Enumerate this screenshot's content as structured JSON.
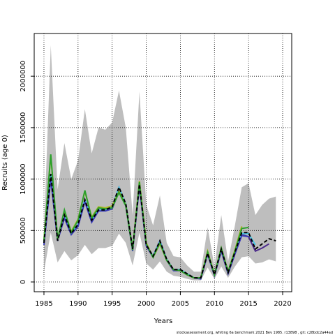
{
  "chart_data": {
    "type": "line",
    "xlabel": "Years",
    "ylabel": "Recruits (age 0)",
    "footer": "stockassessment.org, whiting 6a benchmark 2021 Bev 1985. r13898 , git: c28bdc2a44ad",
    "x": [
      1985,
      1986,
      1987,
      1988,
      1989,
      1990,
      1991,
      1992,
      1993,
      1994,
      1995,
      1996,
      1997,
      1998,
      1999,
      2000,
      2001,
      2002,
      2003,
      2004,
      2005,
      2006,
      2007,
      2008,
      2009,
      2010,
      2011,
      2012,
      2013,
      2014,
      2015,
      2016,
      2017,
      2018,
      2019
    ],
    "band": {
      "color": "#bebebe",
      "upper": [
        500000,
        2300000,
        900000,
        1350000,
        1000000,
        1180000,
        1680000,
        1250000,
        1500000,
        1480000,
        1550000,
        1860000,
        1500000,
        650000,
        1850000,
        750000,
        550000,
        840000,
        380000,
        250000,
        240000,
        160000,
        100000,
        100000,
        530000,
        150000,
        650000,
        200000,
        550000,
        920000,
        960000,
        650000,
        750000,
        810000,
        830000
      ],
      "lower": [
        100000,
        480000,
        190000,
        300000,
        210000,
        260000,
        360000,
        270000,
        330000,
        330000,
        350000,
        470000,
        380000,
        160000,
        480000,
        180000,
        120000,
        200000,
        100000,
        60000,
        50000,
        30000,
        15000,
        15000,
        140000,
        30000,
        150000,
        40000,
        150000,
        240000,
        250000,
        180000,
        190000,
        220000,
        200000
      ]
    },
    "series": [
      {
        "color": "#000000",
        "dashed": true,
        "values": [
          380000,
          1050000,
          400000,
          650000,
          470000,
          560000,
          800000,
          600000,
          700000,
          700000,
          730000,
          920000,
          760000,
          320000,
          950000,
          360000,
          250000,
          400000,
          220000,
          120000,
          120000,
          80000,
          40000,
          40000,
          280000,
          70000,
          320000,
          90000,
          290000,
          480000,
          480000,
          320000,
          370000,
          420000,
          400000
        ]
      },
      {
        "color": "#2ca02c",
        "values": [
          400000,
          1240000,
          420000,
          700000,
          480000,
          600000,
          890000,
          620000,
          720000,
          710000,
          720000,
          870000,
          740000,
          310000,
          970000,
          370000,
          240000,
          380000,
          210000,
          120000,
          110000,
          70000,
          40000,
          40000,
          290000,
          70000,
          330000,
          100000,
          300000,
          520000,
          530000,
          null,
          null,
          null,
          null
        ]
      },
      {
        "color": "#a8b820",
        "values": [
          410000,
          1230000,
          410000,
          690000,
          490000,
          610000,
          880000,
          630000,
          730000,
          720000,
          740000,
          880000,
          750000,
          320000,
          980000,
          380000,
          240000,
          370000,
          210000,
          120000,
          110000,
          70000,
          40000,
          40000,
          300000,
          70000,
          330000,
          100000,
          310000,
          540000,
          null,
          null,
          null,
          null,
          null
        ]
      },
      {
        "color": "#3a3ab8",
        "values": [
          360000,
          1000000,
          400000,
          620000,
          460000,
          540000,
          780000,
          580000,
          690000,
          690000,
          710000,
          880000,
          740000,
          300000,
          930000,
          350000,
          240000,
          390000,
          210000,
          110000,
          110000,
          70000,
          40000,
          30000,
          270000,
          60000,
          300000,
          80000,
          270000,
          450000,
          440000,
          null,
          null,
          null,
          null
        ]
      },
      {
        "color": "#48c8e8",
        "values": [
          380000,
          1050000,
          400000,
          650000,
          470000,
          560000,
          800000,
          600000,
          700000,
          700000,
          730000,
          920000,
          760000,
          320000,
          950000,
          360000,
          250000,
          400000,
          220000,
          120000,
          120000,
          80000,
          40000,
          40000,
          280000,
          70000,
          320000,
          90000,
          290000,
          470000,
          470000,
          360000,
          null,
          null,
          null
        ]
      },
      {
        "color": "#4b2a8c",
        "values": [
          380000,
          1050000,
          400000,
          650000,
          470000,
          560000,
          800000,
          600000,
          700000,
          700000,
          730000,
          920000,
          760000,
          320000,
          950000,
          360000,
          250000,
          400000,
          220000,
          120000,
          120000,
          80000,
          40000,
          40000,
          280000,
          70000,
          320000,
          90000,
          290000,
          460000,
          440000,
          300000,
          330000,
          370000,
          null
        ]
      }
    ],
    "xlim": [
      1983.57,
      2021.33
    ],
    "xticks": [
      1985,
      1990,
      1995,
      2000,
      2005,
      2010,
      2015,
      2020
    ],
    "ylim": [
      -95000,
      2415000
    ],
    "yticks": [
      0,
      500000,
      1000000,
      1500000,
      2000000
    ],
    "grid": true
  }
}
